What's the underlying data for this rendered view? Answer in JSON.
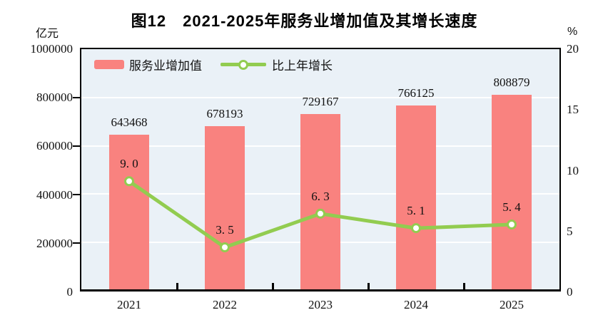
{
  "title": "图12　2021-2025年服务业增加值及其增长速度",
  "axes": {
    "left": {
      "unit": "亿元",
      "ticks": [
        "1000000",
        "800000",
        "600000",
        "400000",
        "200000",
        "0"
      ]
    },
    "right": {
      "unit": "%",
      "ticks": [
        "20",
        "15",
        "10",
        "5",
        "0"
      ]
    }
  },
  "legend": {
    "items": [
      {
        "label": "服务业增加值"
      },
      {
        "label": "比上年增长"
      }
    ]
  },
  "colors": {
    "bar": "#F9827F",
    "line": "#92CC50",
    "plot_bg": "#EAF1F7",
    "grid": "#FFFFFF",
    "axis": "#000000"
  },
  "chart_data": {
    "type": "bar",
    "title": "图12　2021-2025年服务业增加值及其增长速度",
    "categories": [
      "2021",
      "2022",
      "2023",
      "2024",
      "2025"
    ],
    "series": [
      {
        "name": "服务业增加值",
        "type": "bar",
        "axis": "left",
        "unit": "亿元",
        "values": [
          643468,
          678193,
          729167,
          766125,
          808879
        ],
        "labels": [
          "643468",
          "678193",
          "729167",
          "766125",
          "808879"
        ],
        "color": "#F9827F"
      },
      {
        "name": "比上年增长",
        "type": "line",
        "axis": "right",
        "unit": "%",
        "values": [
          9.0,
          3.5,
          6.3,
          5.1,
          5.4
        ],
        "labels": [
          "9. 0",
          "3. 5",
          "6. 3",
          "5. 1",
          "5. 4"
        ],
        "color": "#92CC50"
      }
    ],
    "left_ylim": [
      0,
      1000000
    ],
    "right_ylim": [
      0,
      20
    ],
    "left_tick_interval": 200000,
    "right_tick_interval": 5,
    "grid": true,
    "legend_position": "top-left"
  }
}
